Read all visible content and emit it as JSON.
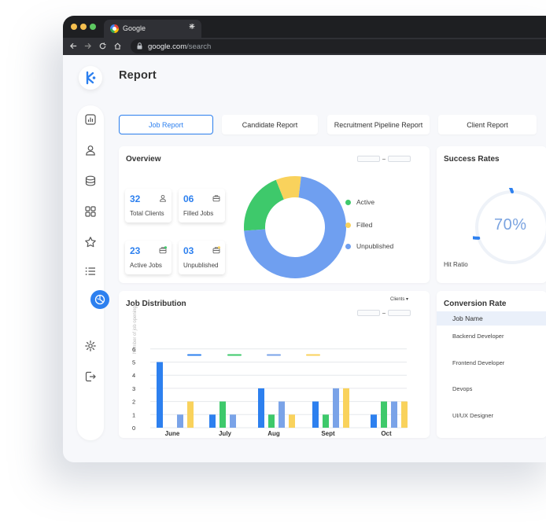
{
  "browser": {
    "tab_title": "Google",
    "tab_close": "✕",
    "new_tab": "+",
    "url_host": "google.com",
    "url_path": "/search",
    "traffic_lights": [
      "#f5bf4f",
      "#f5bf4f",
      "#5dc961"
    ]
  },
  "page": {
    "title": "Report"
  },
  "sidebar": {
    "icons": [
      "analytics-icon",
      "user-icon",
      "database-icon",
      "grid-icon",
      "star-icon",
      "list-icon",
      "report-icon",
      "settings-icon",
      "logout-icon"
    ],
    "accent": "#2d80ef"
  },
  "report_tabs": [
    {
      "label": "Job Report",
      "active": true
    },
    {
      "label": "Candidate Report",
      "active": false
    },
    {
      "label": "Recruitment Pipeline  Report",
      "active": false
    },
    {
      "label": "Client Report",
      "active": false
    }
  ],
  "overview": {
    "title": "Overview",
    "stats": [
      {
        "value": "32",
        "label": "Total Clients",
        "icon": "person-icon"
      },
      {
        "value": "06",
        "label": "Filled Jobs",
        "icon": "briefcase-icon"
      },
      {
        "value": "23",
        "label": "Active Jobs",
        "icon": "briefcase-check-icon"
      },
      {
        "value": "03",
        "label": "Unpublished",
        "icon": "briefcase-alert-icon"
      }
    ],
    "legend": [
      {
        "label": "Active",
        "color": "#3ec96b"
      },
      {
        "label": "Filled",
        "color": "#f9d25c"
      },
      {
        "label": "Unpublished",
        "color": "#6f9ff0"
      }
    ]
  },
  "success_rates": {
    "title": "Success Rates",
    "value": "70%",
    "label": "Hit Ratio",
    "fraction": 0.7,
    "color": "#2d80ef"
  },
  "job_distribution": {
    "title": "Job Distribution",
    "filter": "Clients ▾"
  },
  "conversion_rate": {
    "title": "Conversion Rate",
    "column_header": "Job Name",
    "rows": [
      "Backend Developer",
      "Frontend Developer",
      "Devops",
      "UI/UX Designer"
    ]
  },
  "chart_data": [
    {
      "type": "pie",
      "donut": true,
      "labels": [
        "Active",
        "Filled",
        "Unpublished"
      ],
      "values": [
        20,
        8,
        72
      ],
      "colors": [
        "#3ec96b",
        "#f9d25c",
        "#6f9ff0"
      ],
      "legend_position": "right"
    },
    {
      "type": "bar",
      "title": "Job Distribution",
      "ylabel": "Number of job openings",
      "categories": [
        "June",
        "July",
        "Aug",
        "Sept",
        "Oct"
      ],
      "ylim": [
        0,
        6
      ],
      "yticks": [
        0,
        1,
        2,
        3,
        4,
        5,
        6
      ],
      "grid": true,
      "series": [
        {
          "color": "#2d80ef",
          "values": [
            5,
            1,
            3,
            2,
            1
          ]
        },
        {
          "color": "#3ec96b",
          "values": [
            0,
            2,
            1,
            1,
            2
          ]
        },
        {
          "color": "#7aa3e8",
          "values": [
            1,
            1,
            2,
            3,
            2
          ]
        },
        {
          "color": "#f9d25c",
          "values": [
            2,
            0,
            1,
            3,
            2
          ]
        }
      ]
    }
  ]
}
